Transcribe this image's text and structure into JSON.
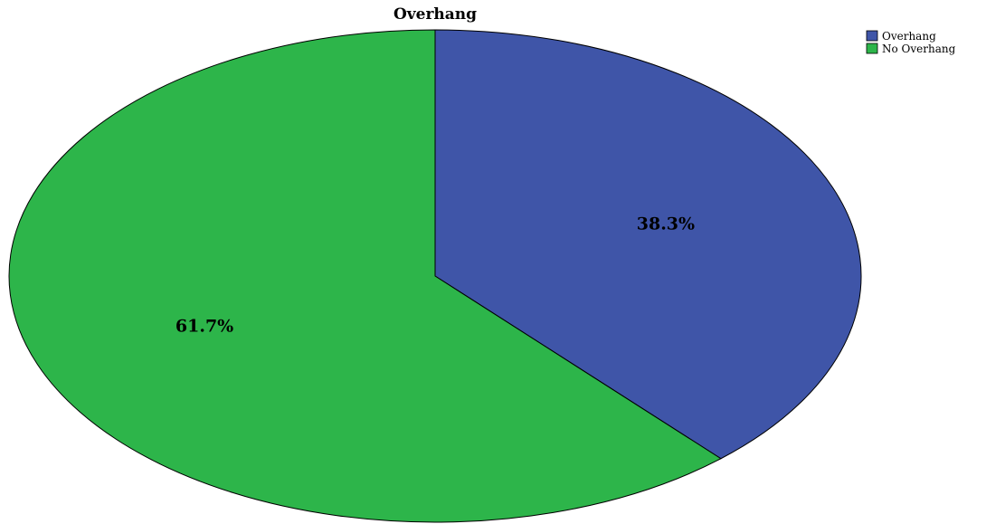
{
  "chart_data": {
    "type": "pie",
    "title": "Overhang",
    "slices": [
      {
        "label": "Overhang",
        "value": 38.3,
        "display": "38.3%",
        "color": "#3f55a8"
      },
      {
        "label": "No Overhang",
        "value": 61.7,
        "display": "61.7%",
        "color": "#2db54a"
      }
    ],
    "start": "12 o'clock",
    "direction": "clockwise",
    "legend_position": "top-right",
    "edge_color": "#000000"
  }
}
